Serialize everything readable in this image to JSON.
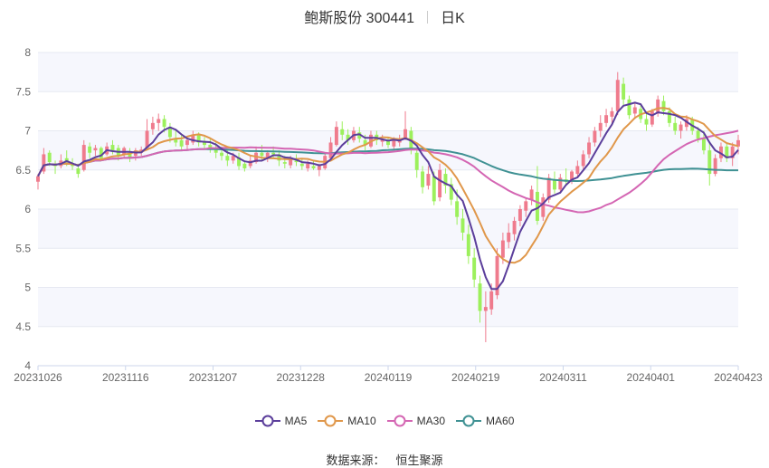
{
  "title": {
    "name": "鲍斯股份 300441",
    "period": "日K"
  },
  "source": {
    "label": "数据来源：",
    "value": "恒生聚源"
  },
  "chart_data": {
    "type": "candlestick",
    "title": "鲍斯股份 300441",
    "ylim": [
      4,
      8
    ],
    "y_ticks": [
      "4",
      "4.5",
      "5",
      "5.5",
      "6",
      "6.5",
      "7",
      "7.5",
      "8"
    ],
    "x_labels": [
      "20231026",
      "20231116",
      "20231207",
      "20231228",
      "20240119",
      "20240219",
      "20240311",
      "20240401",
      "20240423"
    ],
    "grid": "horizontal",
    "legend": "bottom-center",
    "colors": {
      "up": "#ef7b8d",
      "down": "#9cf05c",
      "MA5": "#5b3e9b",
      "MA10": "#e0974a",
      "MA30": "#d466b3",
      "MA60": "#3f9193"
    },
    "ohlc_days": [
      [
        6.35,
        6.45,
        6.25,
        6.42
      ],
      [
        6.48,
        6.78,
        6.45,
        6.7
      ],
      [
        6.72,
        6.75,
        6.55,
        6.6
      ],
      [
        6.58,
        6.62,
        6.45,
        6.55
      ],
      [
        6.55,
        6.7,
        6.52,
        6.62
      ],
      [
        6.65,
        6.75,
        6.55,
        6.6
      ],
      [
        6.58,
        6.65,
        6.5,
        6.55
      ],
      [
        6.52,
        6.58,
        6.4,
        6.45
      ],
      [
        6.5,
        6.88,
        6.48,
        6.82
      ],
      [
        6.8,
        6.85,
        6.65,
        6.72
      ],
      [
        6.75,
        6.82,
        6.68,
        6.78
      ],
      [
        6.78,
        6.8,
        6.62,
        6.65
      ],
      [
        6.7,
        6.85,
        6.68,
        6.8
      ],
      [
        6.82,
        6.88,
        6.7,
        6.75
      ],
      [
        6.78,
        6.82,
        6.62,
        6.68
      ],
      [
        6.7,
        6.8,
        6.65,
        6.78
      ],
      [
        6.72,
        6.78,
        6.6,
        6.65
      ],
      [
        6.68,
        6.78,
        6.62,
        6.75
      ],
      [
        6.72,
        6.8,
        6.68,
        6.76
      ],
      [
        6.78,
        7.15,
        6.75,
        7.0
      ],
      [
        7.02,
        7.18,
        6.95,
        7.1
      ],
      [
        7.1,
        7.22,
        7.0,
        7.15
      ],
      [
        7.15,
        7.2,
        6.98,
        7.05
      ],
      [
        7.05,
        7.1,
        6.85,
        6.92
      ],
      [
        6.9,
        7.0,
        6.8,
        6.85
      ],
      [
        6.88,
        6.95,
        6.75,
        6.8
      ],
      [
        6.82,
        6.9,
        6.75,
        6.88
      ],
      [
        6.85,
        7.0,
        6.82,
        6.95
      ],
      [
        6.95,
        6.98,
        6.8,
        6.85
      ],
      [
        6.85,
        6.92,
        6.78,
        6.82
      ],
      [
        6.82,
        6.9,
        6.72,
        6.78
      ],
      [
        6.78,
        6.85,
        6.65,
        6.72
      ],
      [
        6.72,
        6.8,
        6.62,
        6.68
      ],
      [
        6.68,
        6.75,
        6.55,
        6.62
      ],
      [
        6.62,
        6.72,
        6.58,
        6.68
      ],
      [
        6.66,
        6.72,
        6.5,
        6.55
      ],
      [
        6.58,
        6.62,
        6.48,
        6.52
      ],
      [
        6.55,
        6.68,
        6.52,
        6.62
      ],
      [
        6.6,
        6.8,
        6.58,
        6.72
      ],
      [
        6.72,
        6.82,
        6.62,
        6.68
      ],
      [
        6.66,
        6.75,
        6.6,
        6.72
      ],
      [
        6.72,
        6.8,
        6.65,
        6.7
      ],
      [
        6.7,
        6.75,
        6.55,
        6.62
      ],
      [
        6.6,
        6.68,
        6.52,
        6.58
      ],
      [
        6.56,
        6.68,
        6.52,
        6.65
      ],
      [
        6.62,
        6.7,
        6.55,
        6.6
      ],
      [
        6.58,
        6.65,
        6.5,
        6.55
      ],
      [
        6.52,
        6.62,
        6.48,
        6.58
      ],
      [
        6.55,
        6.62,
        6.5,
        6.52
      ],
      [
        6.5,
        6.58,
        6.42,
        6.55
      ],
      [
        6.52,
        6.72,
        6.5,
        6.68
      ],
      [
        6.65,
        6.92,
        6.62,
        6.85
      ],
      [
        6.82,
        7.12,
        6.8,
        7.05
      ],
      [
        7.02,
        7.12,
        6.88,
        6.95
      ],
      [
        6.95,
        7.02,
        6.82,
        6.88
      ],
      [
        6.88,
        7.05,
        6.85,
        7.0
      ],
      [
        6.98,
        7.05,
        6.85,
        6.9
      ],
      [
        6.88,
        6.95,
        6.75,
        6.82
      ],
      [
        6.8,
        7.0,
        6.78,
        6.95
      ],
      [
        6.95,
        7.0,
        6.82,
        6.88
      ],
      [
        6.86,
        6.95,
        6.8,
        6.9
      ],
      [
        6.88,
        6.92,
        6.78,
        6.82
      ],
      [
        6.8,
        6.92,
        6.75,
        6.88
      ],
      [
        6.85,
        6.95,
        6.8,
        6.9
      ],
      [
        6.9,
        7.25,
        6.88,
        7.02
      ],
      [
        7.0,
        7.05,
        6.7,
        6.75
      ],
      [
        6.72,
        6.78,
        6.4,
        6.5
      ],
      [
        6.48,
        6.55,
        6.2,
        6.28
      ],
      [
        6.3,
        6.55,
        6.25,
        6.45
      ],
      [
        6.42,
        6.48,
        6.05,
        6.1
      ],
      [
        6.15,
        6.58,
        6.1,
        6.5
      ],
      [
        6.45,
        6.52,
        6.2,
        6.3
      ],
      [
        6.32,
        6.4,
        6.05,
        6.12
      ],
      [
        6.1,
        6.25,
        5.8,
        5.9
      ],
      [
        5.88,
        6.0,
        5.6,
        5.7
      ],
      [
        5.68,
        5.8,
        5.3,
        5.4
      ],
      [
        5.38,
        5.5,
        5.0,
        5.1
      ],
      [
        5.05,
        5.15,
        4.55,
        4.7
      ],
      [
        4.7,
        4.95,
        4.3,
        4.75
      ],
      [
        4.72,
        5.05,
        4.65,
        4.95
      ],
      [
        4.9,
        5.5,
        4.85,
        5.4
      ],
      [
        5.38,
        5.7,
        5.3,
        5.6
      ],
      [
        5.58,
        5.82,
        5.5,
        5.7
      ],
      [
        5.68,
        5.9,
        5.6,
        5.85
      ],
      [
        5.85,
        6.05,
        5.78,
        6.0
      ],
      [
        5.98,
        6.15,
        5.9,
        6.1
      ],
      [
        6.12,
        6.3,
        6.05,
        6.25
      ],
      [
        6.22,
        6.55,
        5.8,
        5.85
      ],
      [
        5.9,
        6.2,
        5.85,
        6.15
      ],
      [
        6.12,
        6.45,
        6.08,
        6.4
      ],
      [
        6.38,
        6.48,
        6.2,
        6.25
      ],
      [
        6.25,
        6.45,
        6.2,
        6.4
      ],
      [
        6.38,
        6.52,
        6.3,
        6.35
      ],
      [
        6.35,
        6.5,
        6.32,
        6.48
      ],
      [
        6.45,
        6.62,
        6.4,
        6.55
      ],
      [
        6.55,
        6.75,
        6.5,
        6.7
      ],
      [
        6.7,
        6.92,
        6.65,
        6.85
      ],
      [
        6.85,
        7.05,
        6.8,
        7.0
      ],
      [
        7.0,
        7.2,
        6.92,
        7.1
      ],
      [
        7.1,
        7.28,
        7.05,
        7.2
      ],
      [
        7.18,
        7.3,
        7.08,
        7.25
      ],
      [
        7.25,
        7.75,
        7.2,
        7.65
      ],
      [
        7.6,
        7.68,
        7.3,
        7.4
      ],
      [
        7.4,
        7.45,
        7.15,
        7.2
      ],
      [
        7.22,
        7.35,
        7.15,
        7.3
      ],
      [
        7.28,
        7.35,
        7.1,
        7.15
      ],
      [
        7.15,
        7.22,
        7.0,
        7.08
      ],
      [
        7.08,
        7.28,
        7.05,
        7.25
      ],
      [
        7.22,
        7.45,
        7.18,
        7.4
      ],
      [
        7.38,
        7.45,
        7.2,
        7.25
      ],
      [
        7.25,
        7.3,
        7.05,
        7.1
      ],
      [
        7.1,
        7.18,
        6.95,
        7.0
      ],
      [
        7.0,
        7.12,
        6.9,
        7.08
      ],
      [
        7.05,
        7.2,
        7.0,
        7.15
      ],
      [
        7.15,
        7.18,
        6.95,
        7.0
      ],
      [
        7.0,
        7.05,
        6.85,
        6.9
      ],
      [
        6.9,
        7.0,
        6.7,
        6.75
      ],
      [
        6.75,
        6.85,
        6.3,
        6.45
      ],
      [
        6.45,
        6.7,
        6.42,
        6.65
      ],
      [
        6.65,
        6.85,
        6.6,
        6.8
      ],
      [
        6.8,
        6.85,
        6.6,
        6.65
      ],
      [
        6.65,
        6.85,
        6.55,
        6.8
      ],
      [
        6.8,
        6.95,
        6.7,
        6.88
      ]
    ],
    "ma_window": {
      "MA5": 5,
      "MA10": 10,
      "MA30": 30,
      "MA60": 60
    },
    "legend_labels": [
      "MA5",
      "MA10",
      "MA30",
      "MA60"
    ]
  }
}
